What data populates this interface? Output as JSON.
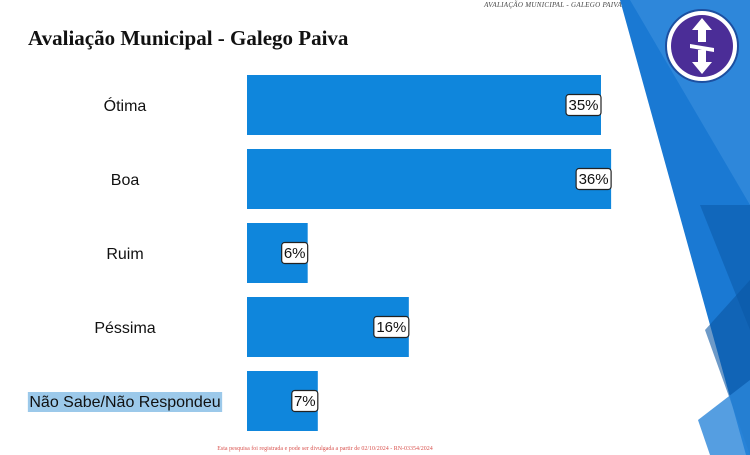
{
  "header": {
    "tag": "AVALIAÇÃO MUNICIPAL - GALEGO PAIVA",
    "title": "Avaliação Municipal - Galego Paiva"
  },
  "footer": {
    "note": "Esta pesquisa foi registrada e pode ser divulgada a partir de 02/10/2024 - RN-03354/2024"
  },
  "colors": {
    "bar": "#0f86dc",
    "accent": "#1f78d1",
    "highlight": "#9cc9ea"
  },
  "chart_data": {
    "type": "bar",
    "orientation": "horizontal",
    "categories": [
      "Ótima",
      "Boa",
      "Ruim",
      "Péssima",
      "Não Sabe/Não Respondeu"
    ],
    "values": [
      35,
      36,
      6,
      16,
      7
    ],
    "value_labels": [
      "35%",
      "36%",
      "6%",
      "16%",
      "7%"
    ],
    "highlighted_category": "Não Sabe/Não Respondeu",
    "grid": false,
    "legend": "none"
  }
}
